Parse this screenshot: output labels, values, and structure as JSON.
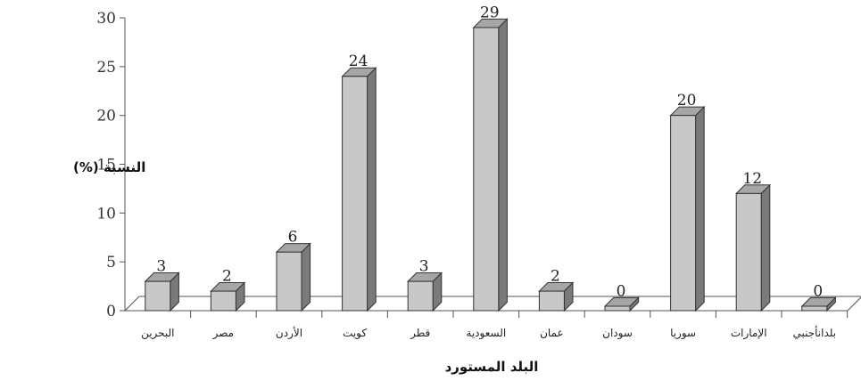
{
  "chart_data": {
    "type": "bar",
    "categories": [
      "البحرين",
      "مصر",
      "الأردن",
      "كويت",
      "قطر",
      "السعودية",
      "عمان",
      "سودان",
      "سوريا",
      "الإمارات",
      "بلدانأجنبي"
    ],
    "values": [
      3,
      2,
      6,
      24,
      3,
      29,
      2,
      0,
      20,
      12,
      0
    ],
    "data_labels": [
      "3",
      "2",
      "6",
      "24",
      "3",
      "29",
      "2",
      "0",
      "20",
      "12",
      "0"
    ],
    "title": "",
    "xlabel": "البلد المستورد",
    "ylabel": "النسبة (%)",
    "ylim": [
      0,
      30
    ],
    "yticks": [
      "0",
      "5",
      "10",
      "15",
      "20",
      "25",
      "30"
    ],
    "grid": false,
    "legend": "none",
    "style": "3d",
    "colors": {
      "bar_front": "#c8c8c8",
      "bar_side": "#7a7a7a",
      "bar_top": "#a6a6a6",
      "axis": "#555555"
    }
  }
}
